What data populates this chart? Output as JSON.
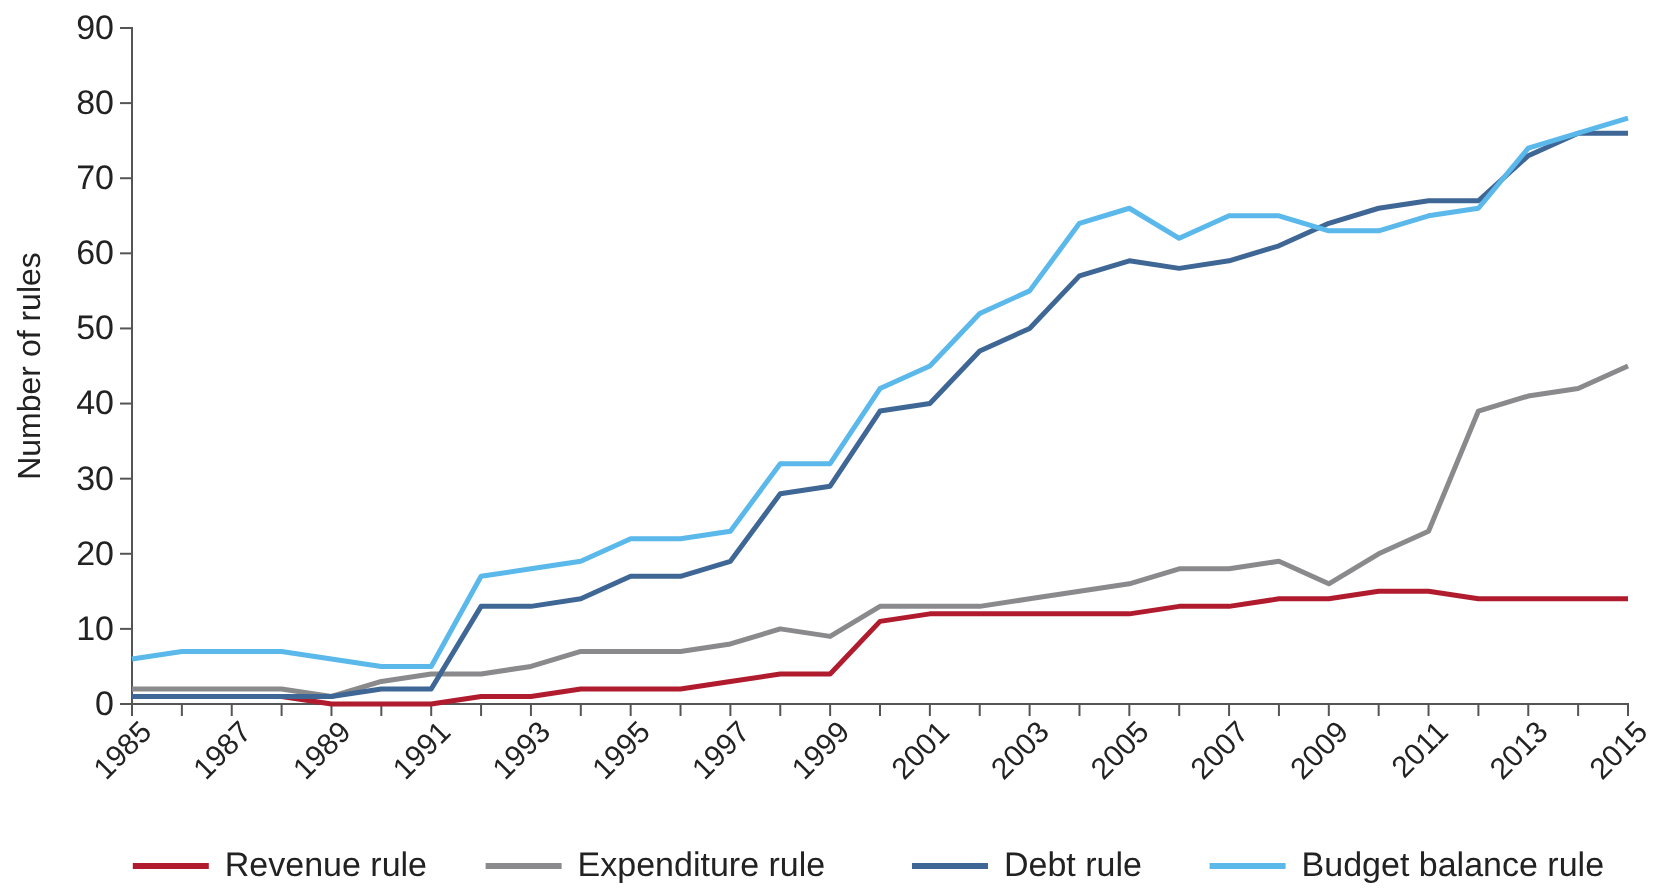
{
  "chart_data": {
    "type": "line",
    "ylabel": "Number of rules",
    "legend": "bottom",
    "grid": false,
    "marker": "none",
    "x": [
      1985,
      1986,
      1987,
      1988,
      1989,
      1990,
      1991,
      1992,
      1993,
      1994,
      1995,
      1996,
      1997,
      1998,
      1999,
      2000,
      2001,
      2002,
      2003,
      2004,
      2005,
      2006,
      2007,
      2008,
      2009,
      2010,
      2011,
      2012,
      2013,
      2014,
      2015
    ],
    "xlim": [
      1985,
      2015
    ],
    "xticks": [
      1985,
      {
        "value": 1986,
        "label": null
      },
      1987,
      {
        "value": 1988,
        "label": null
      },
      1989,
      {
        "value": 1990,
        "label": null
      },
      1991,
      {
        "value": 1992,
        "label": null
      },
      1993,
      {
        "value": 1994,
        "label": null
      },
      1995,
      {
        "value": 1996,
        "label": null
      },
      1997,
      {
        "value": 1998,
        "label": null
      },
      1999,
      {
        "value": 2000,
        "label": null
      },
      2001,
      {
        "value": 2002,
        "label": null
      },
      2003,
      {
        "value": 2004,
        "label": null
      },
      2005,
      {
        "value": 2006,
        "label": null
      },
      2007,
      {
        "value": 2008,
        "label": null
      },
      2009,
      {
        "value": 2010,
        "label": null
      },
      2011,
      {
        "value": 2012,
        "label": null
      },
      2013,
      {
        "value": 2014,
        "label": null
      },
      2015
    ],
    "ylim": [
      0,
      90
    ],
    "yticks": [
      0,
      10,
      20,
      30,
      40,
      50,
      60,
      70,
      80,
      90
    ],
    "series": [
      {
        "name": "Revenue rule",
        "color": "#b01c2e",
        "values": [
          null,
          null,
          1,
          1,
          0,
          0,
          0,
          1,
          1,
          2,
          2,
          2,
          3,
          4,
          4,
          11,
          12,
          12,
          12,
          12,
          12,
          13,
          13,
          14,
          14,
          15,
          15,
          14,
          14,
          14,
          14
        ]
      },
      {
        "name": "Expenditure rule",
        "color": "#8a8a8c",
        "values": [
          2,
          2,
          2,
          2,
          1,
          3,
          4,
          4,
          5,
          7,
          7,
          7,
          8,
          10,
          9,
          13,
          13,
          13,
          14,
          15,
          16,
          18,
          18,
          19,
          16,
          20,
          23,
          39,
          41,
          42,
          45
        ]
      },
      {
        "name": "Debt rule",
        "color": "#3f6795",
        "values": [
          1,
          1,
          1,
          1,
          1,
          2,
          2,
          13,
          13,
          14,
          17,
          17,
          19,
          28,
          29,
          39,
          40,
          47,
          50,
          57,
          59,
          58,
          59,
          61,
          64,
          66,
          67,
          67,
          73,
          76,
          76
        ]
      },
      {
        "name": "Budget balance rule",
        "color": "#5ab8ea",
        "values": [
          6,
          7,
          7,
          7,
          6,
          5,
          5,
          17,
          18,
          19,
          22,
          22,
          23,
          32,
          32,
          42,
          45,
          52,
          55,
          64,
          66,
          62,
          65,
          65,
          63,
          63,
          65,
          66,
          74,
          76,
          78
        ]
      }
    ]
  }
}
